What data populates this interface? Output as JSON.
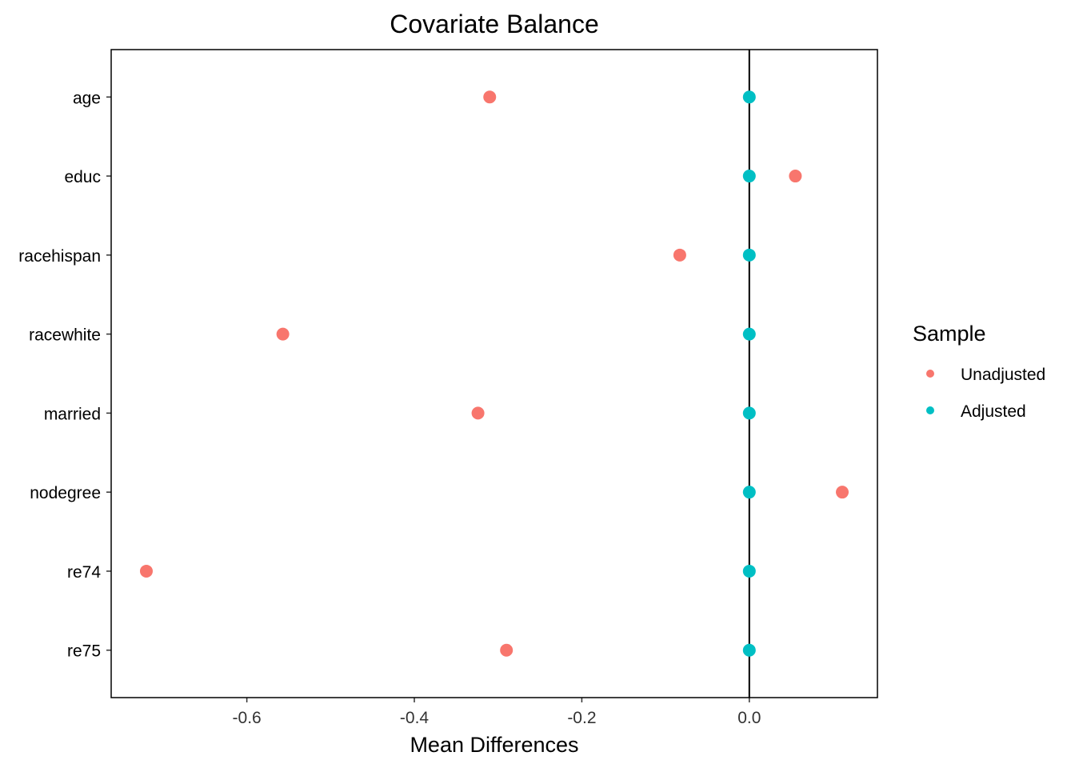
{
  "chart_data": {
    "type": "scatter",
    "title": "Covariate Balance",
    "xlabel": "Mean Differences",
    "ylabel": "",
    "xlim": [
      -0.762,
      0.153
    ],
    "xticks": [
      -0.6,
      -0.4,
      -0.2,
      0.0
    ],
    "xtick_labels": [
      "-0.6",
      "-0.4",
      "-0.2",
      "0.0"
    ],
    "reference_line_x": 0,
    "grid": false,
    "categories": [
      "age",
      "educ",
      "racehispan",
      "racewhite",
      "married",
      "nodegree",
      "re74",
      "re75"
    ],
    "series": [
      {
        "name": "Unadjusted",
        "color": "#F8766D",
        "values": [
          -0.31,
          0.055,
          -0.083,
          -0.557,
          -0.324,
          0.111,
          -0.72,
          -0.29
        ]
      },
      {
        "name": "Adjusted",
        "color": "#00BFC4",
        "values": [
          0,
          0,
          0,
          0,
          0,
          0,
          0,
          0
        ]
      }
    ],
    "legend": {
      "title": "Sample",
      "placement": "right",
      "entries": [
        "Unadjusted",
        "Adjusted"
      ]
    }
  }
}
